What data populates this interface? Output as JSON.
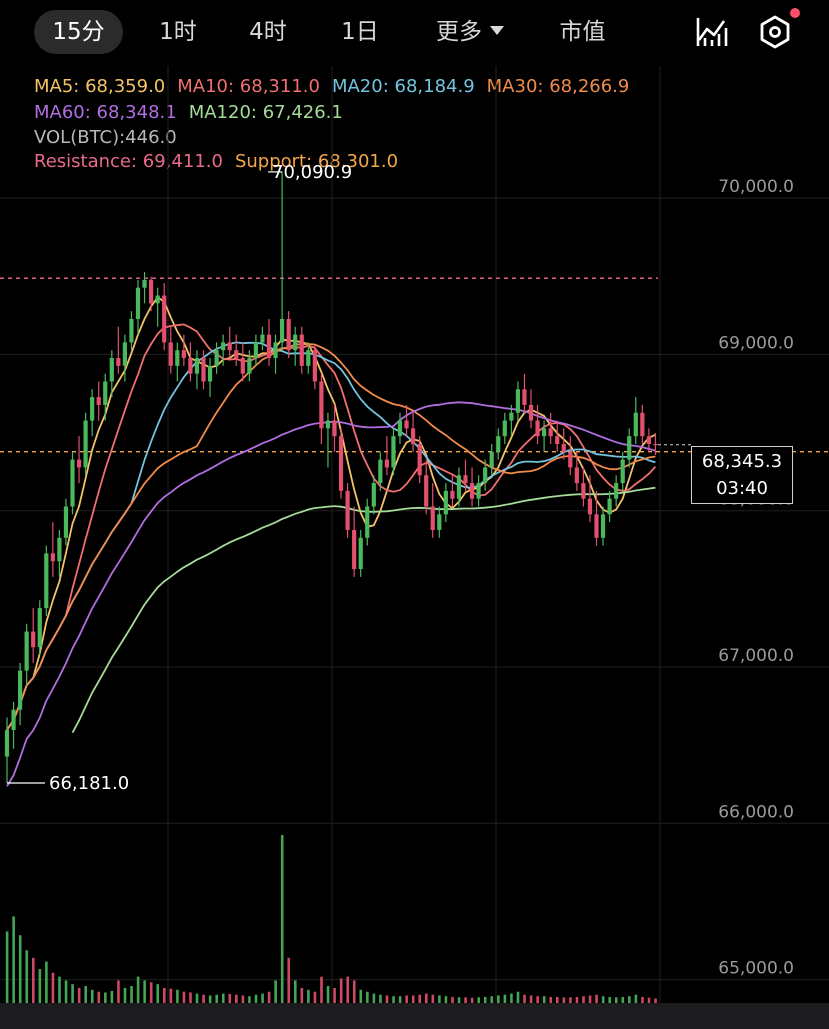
{
  "tabs": [
    {
      "label": "15分",
      "active": true
    },
    {
      "label": "1时",
      "active": false
    },
    {
      "label": "4时",
      "active": false
    },
    {
      "label": "1日",
      "active": false
    },
    {
      "label": "更多",
      "active": false,
      "has_dropdown": true
    },
    {
      "label": "市值",
      "active": false
    }
  ],
  "toolbar": {
    "indicator_icon": "line-chart-icon",
    "settings_icon": "hexagon-settings-icon",
    "has_notification": true
  },
  "legend": {
    "ma5": "MA5: 68,359.0",
    "ma10": "MA10: 68,311.0",
    "ma20": "MA20: 68,184.9",
    "ma30": "MA30: 68,266.9",
    "ma60": "MA60: 68,348.1",
    "ma120": "MA120: 67,426.1",
    "vol": "VOL(BTC):446.0",
    "resistance": "Resistance: 69,411.0",
    "support": "Support: 68,301.0"
  },
  "price_tag": {
    "price": "68,345.3",
    "countdown": "03:40"
  },
  "colors": {
    "up": "#4bb85c",
    "down": "#e2506e",
    "ma5": "#f5c266",
    "ma10": "#f26f6f",
    "ma20": "#74c4df",
    "ma30": "#f08c4a",
    "ma60": "#b16ee0",
    "ma120": "#a4dc98",
    "resistance": "#e86a8c",
    "support": "#f5a64a"
  },
  "chart_data": {
    "type": "candlestick",
    "interval": "15分",
    "symbol_unit": "BTC",
    "y_axis": {
      "ticks": [
        65000,
        66000,
        67000,
        68000,
        69000,
        70000
      ],
      "tick_labels": [
        "65,000.0",
        "66,000.0",
        "67,000.0",
        "68,000.0",
        "69,000.0",
        "70,000.0"
      ],
      "range": [
        64800,
        70300
      ]
    },
    "annotations": {
      "high": {
        "value": 70090.9,
        "label": "70,090.9",
        "bar_index": 42
      },
      "low": {
        "value": 66181.0,
        "label": "66,181.0",
        "bar_index": 0
      }
    },
    "resistance": 69411.0,
    "support": 68301.0,
    "last_price": 68345.3,
    "ohlc": [
      [
        66350,
        66600,
        66181,
        66520
      ],
      [
        66520,
        66700,
        66400,
        66650
      ],
      [
        66650,
        66950,
        66550,
        66900
      ],
      [
        66900,
        67200,
        66800,
        67150
      ],
      [
        67150,
        67300,
        66950,
        67050
      ],
      [
        67050,
        67350,
        67000,
        67300
      ],
      [
        67300,
        67700,
        67250,
        67650
      ],
      [
        67650,
        67850,
        67500,
        67600
      ],
      [
        67600,
        67800,
        67500,
        67750
      ],
      [
        67750,
        68000,
        67700,
        67950
      ],
      [
        67950,
        68300,
        67900,
        68250
      ],
      [
        68250,
        68400,
        68100,
        68200
      ],
      [
        68200,
        68550,
        68150,
        68500
      ],
      [
        68500,
        68700,
        68400,
        68650
      ],
      [
        68650,
        68750,
        68500,
        68600
      ],
      [
        68600,
        68800,
        68500,
        68750
      ],
      [
        68750,
        68950,
        68650,
        68900
      ],
      [
        68900,
        69100,
        68800,
        68850
      ],
      [
        68850,
        69050,
        68750,
        69000
      ],
      [
        69000,
        69200,
        68950,
        69150
      ],
      [
        69150,
        69400,
        69050,
        69350
      ],
      [
        69350,
        69450,
        69250,
        69400
      ],
      [
        69400,
        69420,
        69200,
        69250
      ],
      [
        69250,
        69350,
        69100,
        69300
      ],
      [
        69300,
        69380,
        68950,
        69000
      ],
      [
        69000,
        69100,
        68800,
        68850
      ],
      [
        68850,
        69000,
        68750,
        68950
      ],
      [
        68950,
        69050,
        68850,
        68900
      ],
      [
        68900,
        69000,
        68750,
        68800
      ],
      [
        68800,
        68950,
        68700,
        68900
      ],
      [
        68900,
        68950,
        68700,
        68750
      ],
      [
        68750,
        68900,
        68650,
        68850
      ],
      [
        68850,
        69000,
        68800,
        68950
      ],
      [
        68950,
        69050,
        68850,
        69000
      ],
      [
        69000,
        69100,
        68900,
        68950
      ],
      [
        68950,
        69050,
        68850,
        68900
      ],
      [
        68900,
        69000,
        68750,
        68800
      ],
      [
        68800,
        68950,
        68750,
        68900
      ],
      [
        68900,
        69050,
        68850,
        69000
      ],
      [
        69000,
        69100,
        68950,
        69050
      ],
      [
        69050,
        69150,
        68850,
        68900
      ],
      [
        68900,
        69050,
        68800,
        69000
      ],
      [
        69000,
        70090.9,
        68950,
        69150
      ],
      [
        69150,
        69200,
        68900,
        68950
      ],
      [
        68950,
        69100,
        68850,
        69050
      ],
      [
        69050,
        69100,
        68800,
        68850
      ],
      [
        68850,
        69000,
        68800,
        68950
      ],
      [
        68950,
        68980,
        68700,
        68750
      ],
      [
        68750,
        68800,
        68350,
        68450
      ],
      [
        68450,
        68550,
        68200,
        68500
      ],
      [
        68500,
        68600,
        68300,
        68400
      ],
      [
        68400,
        68450,
        68000,
        68050
      ],
      [
        68050,
        68100,
        67750,
        67800
      ],
      [
        67800,
        67950,
        67500,
        67550
      ],
      [
        67550,
        67800,
        67500,
        67750
      ],
      [
        67750,
        68000,
        67700,
        67950
      ],
      [
        67950,
        68150,
        67900,
        68100
      ],
      [
        68100,
        68300,
        68050,
        68250
      ],
      [
        68250,
        68400,
        68150,
        68200
      ],
      [
        68200,
        68450,
        68150,
        68400
      ],
      [
        68400,
        68550,
        68350,
        68500
      ],
      [
        68500,
        68600,
        68400,
        68450
      ],
      [
        68450,
        68550,
        68300,
        68350
      ],
      [
        68350,
        68400,
        68100,
        68150
      ],
      [
        68150,
        68250,
        67900,
        67950
      ],
      [
        67950,
        68100,
        67750,
        67800
      ],
      [
        67800,
        67950,
        67750,
        67900
      ],
      [
        67900,
        68100,
        67850,
        68050
      ],
      [
        68050,
        68150,
        67950,
        68000
      ],
      [
        68000,
        68200,
        67950,
        68150
      ],
      [
        68150,
        68250,
        68050,
        68100
      ],
      [
        68100,
        68200,
        67950,
        68000
      ],
      [
        68000,
        68150,
        67950,
        68100
      ],
      [
        68100,
        68250,
        68050,
        68200
      ],
      [
        68200,
        68350,
        68150,
        68300
      ],
      [
        68300,
        68450,
        68250,
        68400
      ],
      [
        68400,
        68550,
        68350,
        68500
      ],
      [
        68500,
        68600,
        68400,
        68550
      ],
      [
        68550,
        68750,
        68500,
        68700
      ],
      [
        68700,
        68800,
        68550,
        68600
      ],
      [
        68600,
        68700,
        68450,
        68500
      ],
      [
        68500,
        68600,
        68350,
        68400
      ],
      [
        68400,
        68500,
        68300,
        68450
      ],
      [
        68450,
        68550,
        68350,
        68400
      ],
      [
        68400,
        68500,
        68300,
        68350
      ],
      [
        68350,
        68450,
        68250,
        68300
      ],
      [
        68300,
        68400,
        68150,
        68200
      ],
      [
        68200,
        68300,
        68050,
        68100
      ],
      [
        68100,
        68200,
        67950,
        68000
      ],
      [
        68000,
        68150,
        67850,
        67900
      ],
      [
        67900,
        68050,
        67700,
        67750
      ],
      [
        67750,
        67950,
        67700,
        67900
      ],
      [
        67900,
        68050,
        67850,
        68000
      ],
      [
        68000,
        68150,
        67950,
        68100
      ],
      [
        68100,
        68300,
        68050,
        68250
      ],
      [
        68250,
        68450,
        68200,
        68400
      ],
      [
        68400,
        68650,
        68350,
        68550
      ],
      [
        68550,
        68600,
        68350,
        68400
      ],
      [
        68400,
        68450,
        68300,
        68350
      ],
      [
        68350,
        68420,
        68280,
        68345.3
      ]
    ],
    "volume": [
      190,
      230,
      180,
      140,
      120,
      90,
      110,
      80,
      70,
      60,
      50,
      40,
      45,
      35,
      30,
      28,
      32,
      60,
      40,
      45,
      70,
      60,
      55,
      50,
      40,
      38,
      35,
      30,
      28,
      25,
      22,
      20,
      22,
      25,
      24,
      22,
      20,
      18,
      22,
      25,
      30,
      60,
      446,
      120,
      60,
      40,
      35,
      30,
      70,
      45,
      40,
      65,
      70,
      60,
      35,
      30,
      25,
      22,
      20,
      18,
      18,
      20,
      20,
      22,
      25,
      22,
      20,
      18,
      16,
      15,
      15,
      14,
      15,
      16,
      18,
      20,
      22,
      25,
      30,
      22,
      20,
      18,
      18,
      16,
      16,
      15,
      15,
      16,
      18,
      20,
      22,
      18,
      16,
      15,
      16,
      18,
      22,
      16,
      14,
      12
    ],
    "volume_max": 446
  }
}
